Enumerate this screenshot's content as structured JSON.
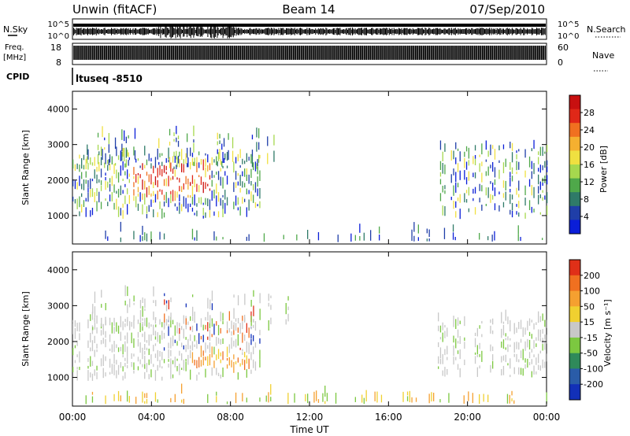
{
  "header": {
    "title_left": "Unwin (fitACF)",
    "title_center": "Beam 14",
    "title_right": "07/Sep/2010"
  },
  "strips": {
    "nsky_label": "N.Sky",
    "nsky_ticks": [
      "10^5",
      "10^0"
    ],
    "nsearch_label": "N.Search",
    "nsearch_ticks": [
      "10^5",
      "10^0"
    ],
    "freq_label": "Freq.",
    "freq_unit": "[MHz]",
    "freq_ticks": [
      "18",
      "8"
    ],
    "nave_label": "Nave",
    "nave_ticks": [
      "60",
      "0"
    ],
    "cpid_label": "CPID",
    "cpid_value": "ltuseq -8510"
  },
  "chart_data": [
    {
      "type": "heatmap",
      "name": "power",
      "ylabel": "Slant Range [km]",
      "ylim": [
        200,
        4500
      ],
      "y_ticks": [
        1000,
        2000,
        3000,
        4000
      ],
      "xlim_hours": [
        0,
        24
      ],
      "colorbar": {
        "label": "Power [dB]",
        "ticks": [
          "4",
          "8",
          "12",
          "16",
          "20",
          "24",
          "28"
        ],
        "colors": [
          "#0a1ed8",
          "#1f3ea8",
          "#2f7a68",
          "#4fa84a",
          "#a6d84e",
          "#f0e040",
          "#f5b030",
          "#f07020",
          "#e02818",
          "#c81010"
        ]
      }
    },
    {
      "type": "heatmap",
      "name": "velocity",
      "ylabel": "Slant Range [km]",
      "ylim": [
        200,
        4500
      ],
      "y_ticks": [
        1000,
        2000,
        3000,
        4000
      ],
      "xlim_hours": [
        0,
        24
      ],
      "colorbar": {
        "label": "Velocity [m s⁻¹]",
        "ticks": [
          "200",
          "100",
          "50",
          "15",
          "-15",
          "-50",
          "-100",
          "-200"
        ],
        "colors": [
          "#1230b8",
          "#2a5ca8",
          "#2f8a5a",
          "#7cc840",
          "#c8c8c8",
          "#f0d030",
          "#f5a030",
          "#f07020",
          "#e03018"
        ]
      }
    }
  ],
  "x_axis": {
    "label": "Time UT",
    "ticks": [
      "00:00",
      "04:00",
      "08:00",
      "12:00",
      "16:00",
      "20:00",
      "00:00"
    ]
  }
}
